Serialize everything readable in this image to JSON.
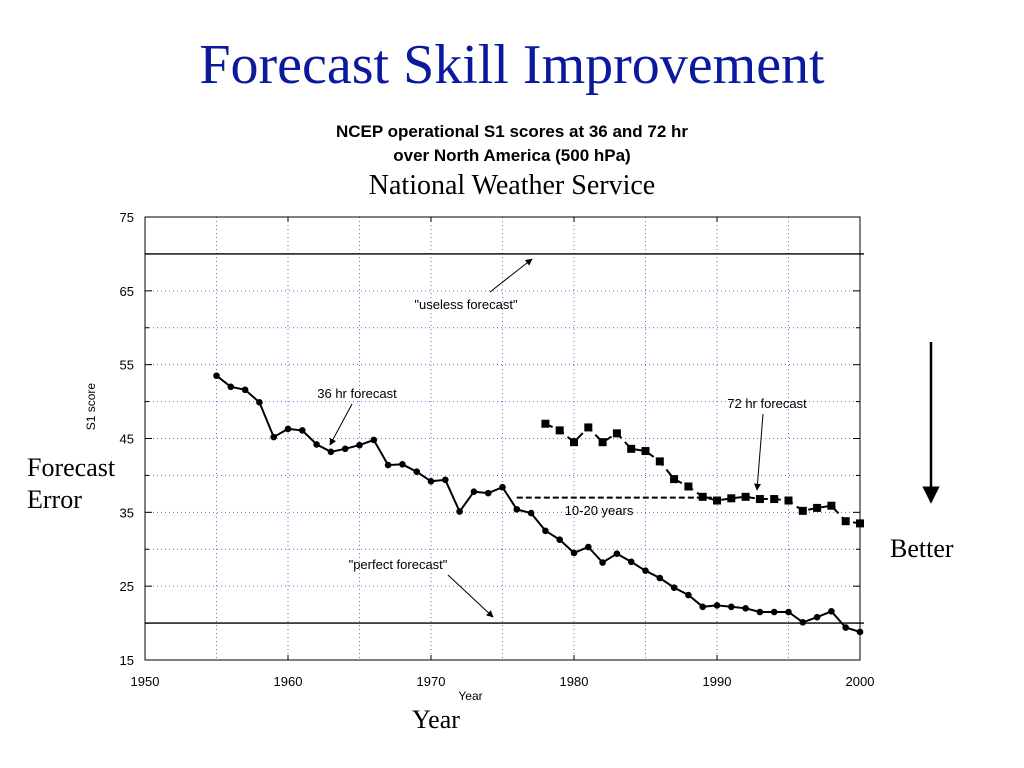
{
  "slide": {
    "title": "Forecast Skill Improvement",
    "side_left_line1": "Forecast",
    "side_left_line2": "Error",
    "side_right": "Better",
    "x_caption": "Year"
  },
  "colors": {
    "title": "#0b1a9c",
    "grid": "#6a6ad8",
    "series": "#000000"
  },
  "chart_data": {
    "type": "line",
    "title": "NCEP operational S1 scores at 36 and 72 hr over North America (500 hPa)",
    "title_line1": "NCEP operational S1 scores at 36 and 72 hr",
    "title_line2": "over North America (500 hPa)",
    "subtitle": "National Weather Service",
    "xlabel": "Year",
    "ylabel": "S1 score",
    "xlim": [
      1950,
      2000
    ],
    "ylim": [
      15,
      75
    ],
    "xticks": [
      1950,
      1960,
      1970,
      1980,
      1990,
      2000
    ],
    "yticks": [
      15,
      25,
      35,
      45,
      55,
      65,
      75
    ],
    "grid": true,
    "reference_lines": [
      {
        "y": 70,
        "label": "\"useless forecast\""
      },
      {
        "y": 20,
        "label": "\"perfect forecast\""
      }
    ],
    "gap_annotation": {
      "y": 37,
      "x_start": 1976,
      "x_end": 1990,
      "label": "10-20 years"
    },
    "series": [
      {
        "name": "36 hr forecast",
        "style": "solid",
        "marker": "circle",
        "x": [
          1955,
          1956,
          1957,
          1958,
          1959,
          1960,
          1961,
          1962,
          1963,
          1964,
          1965,
          1966,
          1967,
          1968,
          1969,
          1970,
          1971,
          1972,
          1973,
          1974,
          1975,
          1976,
          1977,
          1978,
          1979,
          1980,
          1981,
          1982,
          1983,
          1984,
          1985,
          1986,
          1987,
          1988,
          1989,
          1990,
          1991,
          1992,
          1993,
          1994,
          1995,
          1996,
          1997,
          1998,
          1999,
          2000
        ],
        "y": [
          53.5,
          52.0,
          51.6,
          49.9,
          45.2,
          46.3,
          46.1,
          44.2,
          43.2,
          43.6,
          44.1,
          44.8,
          41.4,
          41.5,
          40.5,
          39.2,
          39.4,
          35.1,
          37.8,
          37.6,
          38.4,
          35.4,
          34.9,
          32.5,
          31.3,
          29.5,
          30.3,
          28.2,
          29.4,
          28.3,
          27.1,
          26.1,
          24.8,
          23.8,
          22.2,
          22.4,
          22.2,
          22.0,
          21.5,
          21.5,
          21.5,
          20.1,
          20.8,
          21.6,
          19.4,
          18.8
        ]
      },
      {
        "name": "72 hr forecast",
        "style": "dashed",
        "marker": "square",
        "x": [
          1978,
          1979,
          1980,
          1981,
          1982,
          1983,
          1984,
          1985,
          1986,
          1987,
          1988,
          1989,
          1990,
          1991,
          1992,
          1993,
          1994,
          1995,
          1996,
          1997,
          1998,
          1999,
          2000
        ],
        "y": [
          47.0,
          46.1,
          44.5,
          46.5,
          44.5,
          45.7,
          43.6,
          43.3,
          41.9,
          39.5,
          38.5,
          37.1,
          36.6,
          36.9,
          37.1,
          36.8,
          36.8,
          36.6,
          35.2,
          35.6,
          35.9,
          33.8,
          33.5
        ]
      }
    ],
    "annotations": [
      {
        "text": "\"useless forecast\""
      },
      {
        "text": "\"perfect forecast\""
      },
      {
        "text": "36 hr forecast"
      },
      {
        "text": "72 hr forecast"
      },
      {
        "text": "10-20 years"
      }
    ]
  }
}
